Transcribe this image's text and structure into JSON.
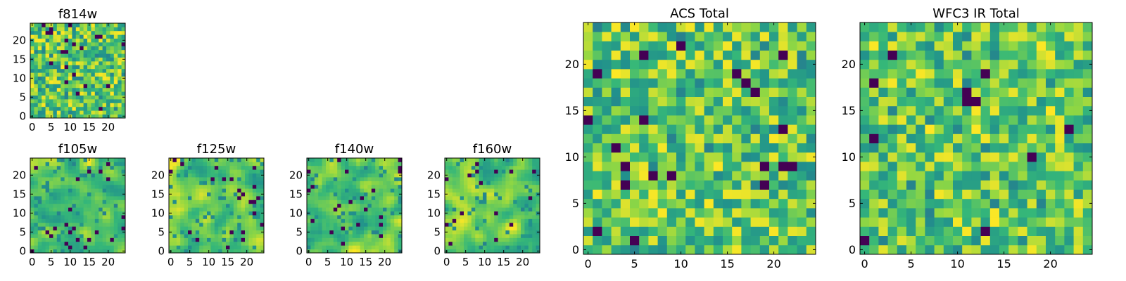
{
  "figure": {
    "background": "#ffffff",
    "colormap": [
      "#440154",
      "#31688e",
      "#21918c",
      "#35b779",
      "#90d743",
      "#fde725"
    ]
  },
  "chart_data": [
    {
      "type": "heatmap",
      "title": "f814w",
      "grid_size": 25,
      "xlim": [
        0,
        24
      ],
      "ylim": [
        0,
        24
      ],
      "xticks": [
        0,
        5,
        10,
        15,
        20
      ],
      "yticks": [
        0,
        5,
        10,
        15,
        20
      ],
      "xtick_labels": [
        "0",
        "5",
        "10",
        "15",
        "20"
      ],
      "ytick_labels": [
        "0",
        "5",
        "10",
        "15",
        "20"
      ],
      "field": {
        "seed": 11,
        "smooth": 0,
        "dark_fraction": 0.04
      }
    },
    {
      "type": "heatmap",
      "title": "f105w",
      "grid_size": 25,
      "xlim": [
        0,
        24
      ],
      "ylim": [
        0,
        24
      ],
      "xticks": [
        0,
        5,
        10,
        15,
        20
      ],
      "yticks": [
        0,
        5,
        10,
        15,
        20
      ],
      "xtick_labels": [
        "0",
        "5",
        "10",
        "15",
        "20"
      ],
      "ytick_labels": [
        "0",
        "5",
        "10",
        "15",
        "20"
      ],
      "field": {
        "seed": 23,
        "smooth": 2,
        "dark_fraction": 0.035
      }
    },
    {
      "type": "heatmap",
      "title": "f125w",
      "grid_size": 25,
      "xlim": [
        0,
        24
      ],
      "ylim": [
        0,
        24
      ],
      "xticks": [
        0,
        5,
        10,
        15,
        20
      ],
      "yticks": [
        0,
        5,
        10,
        15,
        20
      ],
      "xtick_labels": [
        "0",
        "5",
        "10",
        "15",
        "20"
      ],
      "ytick_labels": [
        "0",
        "5",
        "10",
        "15",
        "20"
      ],
      "field": {
        "seed": 37,
        "smooth": 2,
        "dark_fraction": 0.035
      }
    },
    {
      "type": "heatmap",
      "title": "f140w",
      "grid_size": 25,
      "xlim": [
        0,
        24
      ],
      "ylim": [
        0,
        24
      ],
      "xticks": [
        0,
        5,
        10,
        15,
        20
      ],
      "yticks": [
        0,
        5,
        10,
        15,
        20
      ],
      "xtick_labels": [
        "0",
        "5",
        "10",
        "15",
        "20"
      ],
      "ytick_labels": [
        "0",
        "5",
        "10",
        "15",
        "20"
      ],
      "field": {
        "seed": 41,
        "smooth": 2,
        "dark_fraction": 0.03
      }
    },
    {
      "type": "heatmap",
      "title": "f160w",
      "grid_size": 25,
      "xlim": [
        0,
        24
      ],
      "ylim": [
        0,
        24
      ],
      "xticks": [
        0,
        5,
        10,
        15,
        20
      ],
      "yticks": [
        0,
        5,
        10,
        15,
        20
      ],
      "xtick_labels": [
        "0",
        "5",
        "10",
        "15",
        "20"
      ],
      "ytick_labels": [
        "0",
        "5",
        "10",
        "15",
        "20"
      ],
      "field": {
        "seed": 53,
        "smooth": 2,
        "dark_fraction": 0.035
      }
    },
    {
      "type": "heatmap",
      "title": "ACS Total",
      "grid_size": 25,
      "xlim": [
        0,
        24
      ],
      "ylim": [
        0,
        24
      ],
      "xticks": [
        0,
        5,
        10,
        15,
        20
      ],
      "yticks": [
        0,
        5,
        10,
        15,
        20
      ],
      "xtick_labels": [
        "0",
        "5",
        "10",
        "15",
        "20"
      ],
      "ytick_labels": [
        "0",
        "5",
        "10",
        "15",
        "20"
      ],
      "field": {
        "seed": 67,
        "smooth": 0,
        "dark_fraction": 0.025
      }
    },
    {
      "type": "heatmap",
      "title": "WFC3 IR Total",
      "grid_size": 25,
      "xlim": [
        0,
        24
      ],
      "ylim": [
        0,
        24
      ],
      "xticks": [
        0,
        5,
        10,
        15,
        20
      ],
      "yticks": [
        0,
        5,
        10,
        15,
        20
      ],
      "xtick_labels": [
        "0",
        "5",
        "10",
        "15",
        "20"
      ],
      "ytick_labels": [
        "0",
        "5",
        "10",
        "15",
        "20"
      ],
      "field": {
        "seed": 79,
        "smooth": 0,
        "dark_fraction": 0.025
      }
    }
  ]
}
